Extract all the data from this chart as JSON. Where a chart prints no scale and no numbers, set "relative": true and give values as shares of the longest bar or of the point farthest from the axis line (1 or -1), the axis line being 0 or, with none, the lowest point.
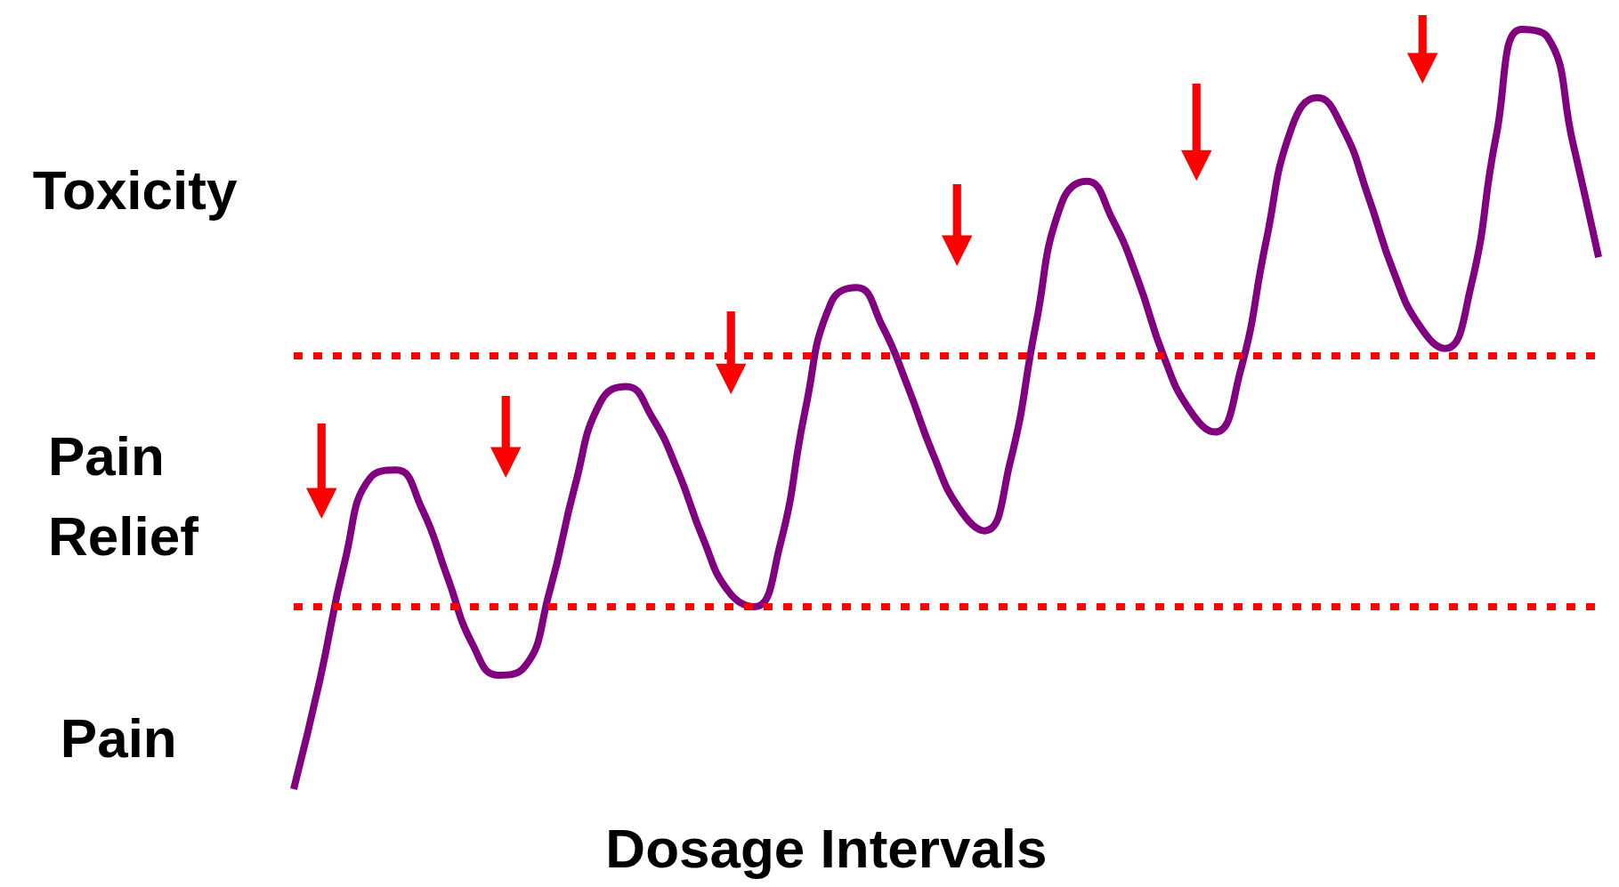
{
  "chart_data": {
    "type": "line",
    "relative": true,
    "xlabel": "Dosage Intervals",
    "annotations": [
      "Toxicity",
      "Pain Relief",
      "Pain"
    ],
    "tick_labels": false,
    "categories": [
      null,
      null,
      null,
      null,
      null,
      null,
      null,
      null,
      null,
      null,
      null,
      null,
      null,
      null,
      null,
      null,
      null,
      null,
      null,
      null,
      null,
      null,
      null,
      null,
      null,
      null,
      null,
      null,
      null,
      null,
      null,
      null,
      null,
      null,
      null,
      null,
      null,
      null,
      null,
      null,
      null,
      null,
      null,
      null,
      null,
      null,
      null,
      null,
      null,
      null,
      null,
      null
    ],
    "series": [
      {
        "color": "#800080",
        "values": [
          0,
          0.14,
          0.3,
          0.41,
          0.42,
          0.37,
          0.28,
          0.19,
          0.15,
          0.16,
          0.26,
          0.4,
          0.51,
          0.53,
          0.49,
          0.42,
          0.33,
          0.26,
          0.24,
          0.32,
          0.5,
          0.64,
          0.66,
          0.61,
          0.53,
          0.44,
          0.37,
          0.34,
          0.43,
          0.61,
          0.77,
          0.8,
          0.75,
          0.67,
          0.57,
          0.5,
          0.47,
          0.55,
          0.72,
          0.87,
          0.91,
          0.87,
          0.78,
          0.68,
          0.61,
          0.58,
          0.66,
          0.86,
          1,
          0.99,
          0.85,
          0.7
        ]
      }
    ],
    "ref_lines": [
      {
        "axis": "y",
        "value": 0.57,
        "color": "#ff0000",
        "line_style": "dotted"
      },
      {
        "axis": "y",
        "value": 0.24,
        "color": "#ff0000",
        "line_style": "dotted"
      }
    ]
  }
}
